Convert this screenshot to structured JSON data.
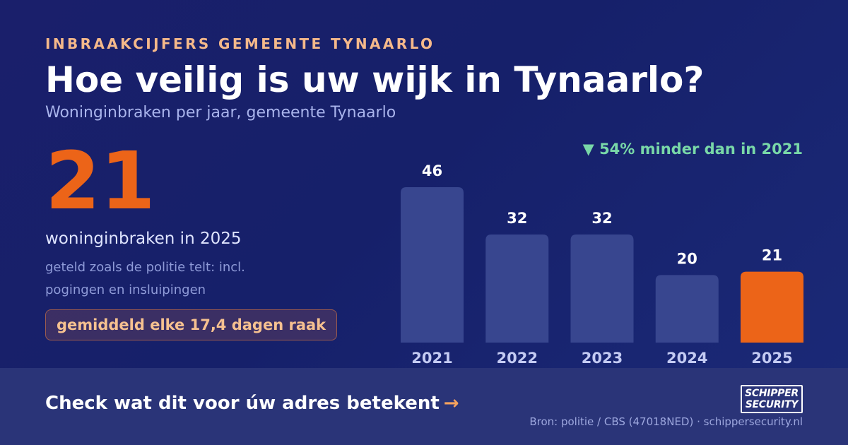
{
  "header": {
    "eyebrow": "INBRAAKCIJFERS GEMEENTE TYNAARLO",
    "title": "Hoe veilig is uw wijk in Tynaarlo?",
    "subtitle": "Woninginbraken per jaar, gemeente Tynaarlo"
  },
  "highlight": {
    "value": "21",
    "caption": "woninginbraken in 2025",
    "note": "geteld zoals de politie telt: incl. pogingen en insluipingen",
    "pill": "gemiddeld elke 17,4 dagen raak"
  },
  "change_label": "▼ 54% minder dan in 2021",
  "chart_data": {
    "type": "bar",
    "title": "",
    "xlabel": "",
    "ylabel": "",
    "categories": [
      "2021",
      "2022",
      "2023",
      "2024",
      "2025"
    ],
    "values": [
      46,
      32,
      32,
      20,
      21
    ],
    "ylim": [
      0,
      46
    ],
    "grid": false,
    "data_labels": true,
    "highlight_index": 4
  },
  "footer": {
    "cta": "Check wat dit voor úw adres betekent",
    "cta_arrow": "→",
    "source": "Bron: politie / CBS (47018NED) · schippersecurity.nl",
    "logo_line1": "SCHIPPER",
    "logo_line2": "SECURITY"
  },
  "colors": {
    "bar": "#38468f",
    "bar_highlight": "#ec6418",
    "value_label": "#ffffff",
    "category_label": "#c4cbf3",
    "accent": "#ec6418",
    "positive": "#79d8a8"
  }
}
